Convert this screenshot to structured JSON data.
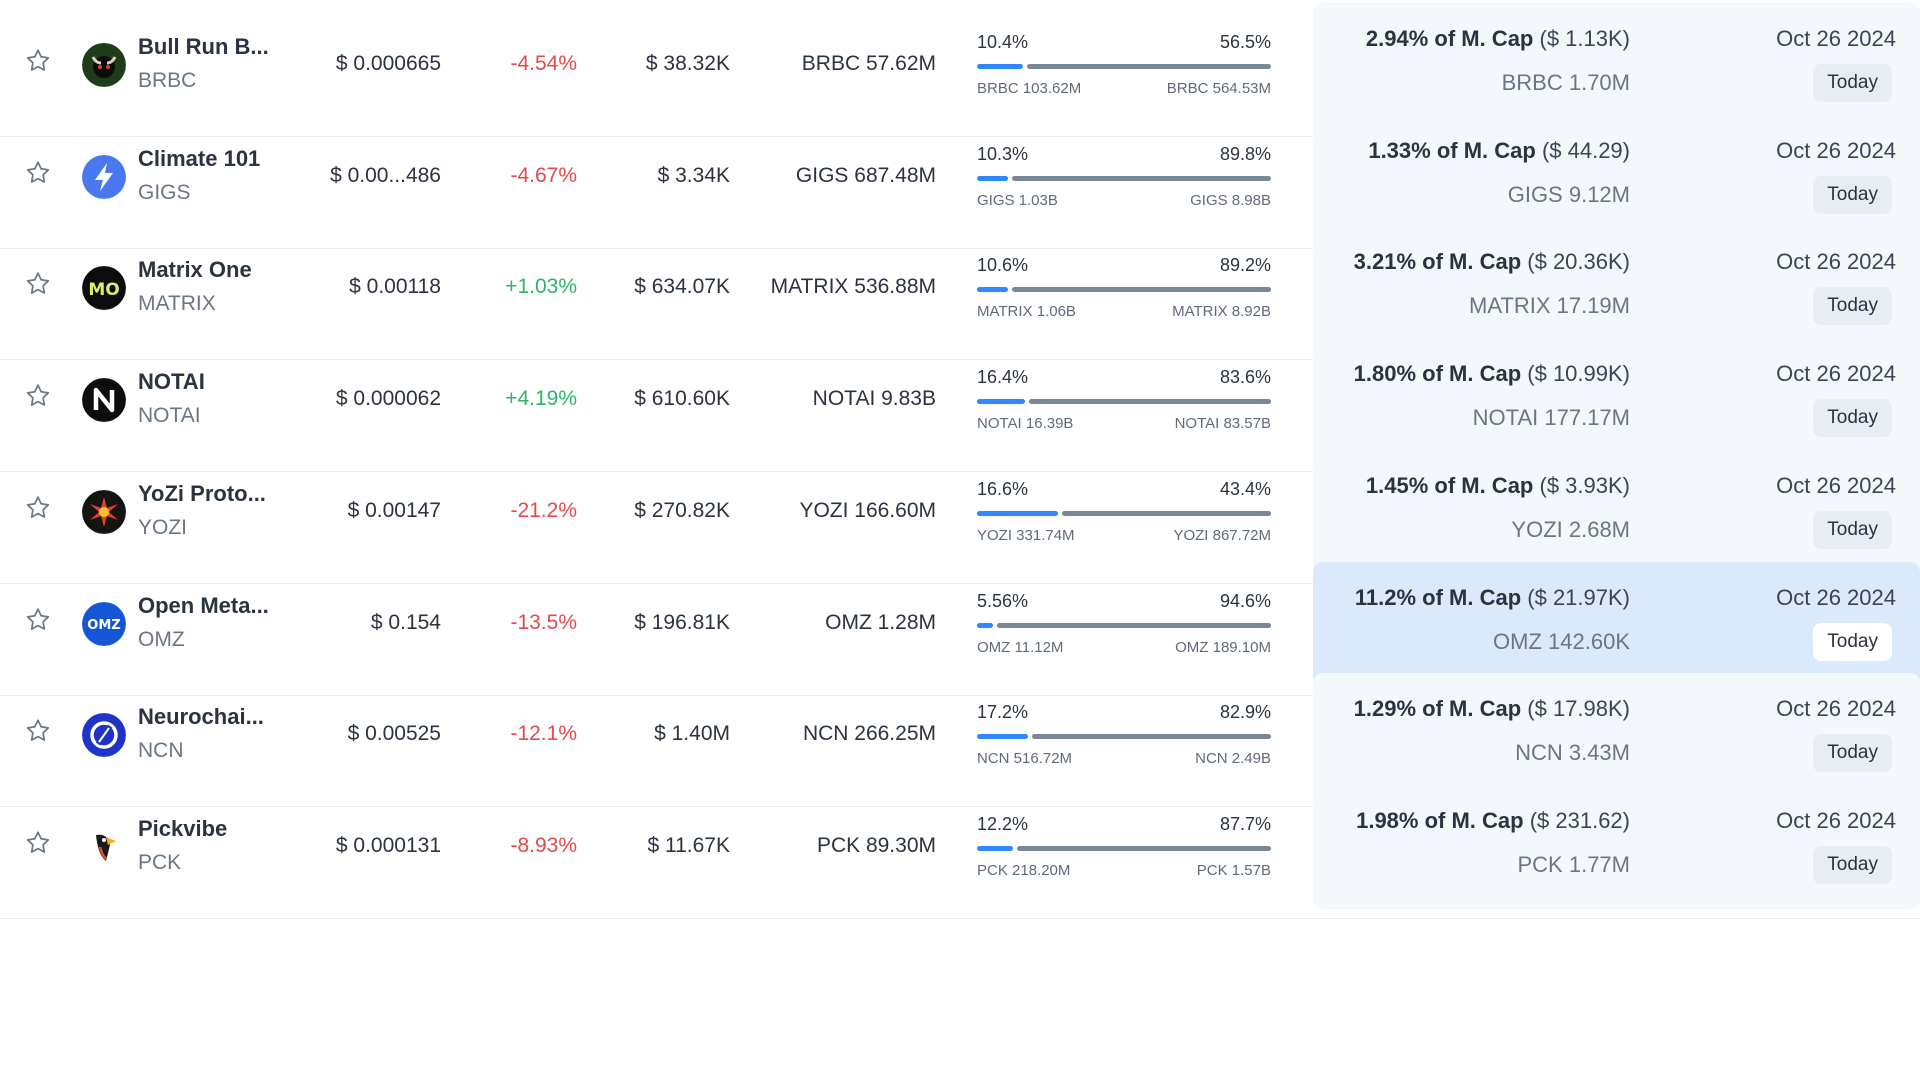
{
  "colors": {
    "negative": "#e5484d",
    "positive": "#2fb36b",
    "bar_fill": "#2f88ff",
    "bar_rest": "#7a8795",
    "panel": "#f4f8fd",
    "panel_active": "#dbe9fc"
  },
  "rows": [
    {
      "icon": "bull-run-logo-icon",
      "name": "Bull Run B...",
      "symbol": "BRBC",
      "price": "$ 0.000665",
      "change": "-4.54%",
      "change_dir": "neg",
      "volume": "$ 38.32K",
      "supply": "BRBC 57.62M",
      "pct_left": "10.4%",
      "pct_right": "56.5%",
      "fill": 0.156,
      "amt_left": "BRBC 103.62M",
      "amt_right": "BRBC 564.53M",
      "cap_pct": "2.94% of M. Cap",
      "cap_usd": "($ 1.13K)",
      "cap_amount": "BRBC 1.70M",
      "date": "Oct 26 2024",
      "badge": "Today",
      "active": false
    },
    {
      "icon": "lightning-logo-icon",
      "name": "Climate 101",
      "symbol": "GIGS",
      "price": "$ 0.00...486",
      "change": "-4.67%",
      "change_dir": "neg",
      "volume": "$ 3.34K",
      "supply": "GIGS 687.48M",
      "pct_left": "10.3%",
      "pct_right": "89.8%",
      "fill": 0.104,
      "amt_left": "GIGS 1.03B",
      "amt_right": "GIGS 8.98B",
      "cap_pct": "1.33% of M. Cap",
      "cap_usd": "($ 44.29)",
      "cap_amount": "GIGS 9.12M",
      "date": "Oct 26 2024",
      "badge": "Today",
      "active": false
    },
    {
      "icon": "matrix-logo-icon",
      "name": "Matrix One",
      "symbol": "MATRIX",
      "price": "$ 0.00118",
      "change": "+1.03%",
      "change_dir": "pos",
      "volume": "$ 634.07K",
      "supply": "MATRIX 536.88M",
      "pct_left": "10.6%",
      "pct_right": "89.2%",
      "fill": 0.106,
      "amt_left": "MATRIX 1.06B",
      "amt_right": "MATRIX 8.92B",
      "cap_pct": "3.21% of M. Cap",
      "cap_usd": "($ 20.36K)",
      "cap_amount": "MATRIX 17.19M",
      "date": "Oct 26 2024",
      "badge": "Today",
      "active": false
    },
    {
      "icon": "notai-logo-icon",
      "name": "NOTAI",
      "symbol": "NOTAI",
      "price": "$ 0.000062",
      "change": "+4.19%",
      "change_dir": "pos",
      "volume": "$ 610.60K",
      "supply": "NOTAI 9.83B",
      "pct_left": "16.4%",
      "pct_right": "83.6%",
      "fill": 0.164,
      "amt_left": "NOTAI 16.39B",
      "amt_right": "NOTAI 83.57B",
      "cap_pct": "1.80% of M. Cap",
      "cap_usd": "($ 10.99K)",
      "cap_amount": "NOTAI 177.17M",
      "date": "Oct 26 2024",
      "badge": "Today",
      "active": false
    },
    {
      "icon": "yozi-logo-icon",
      "name": "YoZi Proto...",
      "symbol": "YOZI",
      "price": "$ 0.00147",
      "change": "-21.2%",
      "change_dir": "neg",
      "volume": "$ 270.82K",
      "supply": "YOZI 166.60M",
      "pct_left": "16.6%",
      "pct_right": "43.4%",
      "fill": 0.277,
      "amt_left": "YOZI 331.74M",
      "amt_right": "YOZI 867.72M",
      "cap_pct": "1.45% of M. Cap",
      "cap_usd": "($ 3.93K)",
      "cap_amount": "YOZI 2.68M",
      "date": "Oct 26 2024",
      "badge": "Today",
      "active": false
    },
    {
      "icon": "omz-logo-icon",
      "name": "Open Meta...",
      "symbol": "OMZ",
      "price": "$ 0.154",
      "change": "-13.5%",
      "change_dir": "neg",
      "volume": "$ 196.81K",
      "supply": "OMZ 1.28M",
      "pct_left": "5.56%",
      "pct_right": "94.6%",
      "fill": 0.056,
      "amt_left": "OMZ 11.12M",
      "amt_right": "OMZ 189.10M",
      "cap_pct": "11.2% of M. Cap",
      "cap_usd": "($ 21.97K)",
      "cap_amount": "OMZ 142.60K",
      "date": "Oct 26 2024",
      "badge": "Today",
      "active": true
    },
    {
      "icon": "neurochain-logo-icon",
      "name": "Neurochai...",
      "symbol": "NCN",
      "price": "$ 0.00525",
      "change": "-12.1%",
      "change_dir": "neg",
      "volume": "$ 1.40M",
      "supply": "NCN 266.25M",
      "pct_left": "17.2%",
      "pct_right": "82.9%",
      "fill": 0.172,
      "amt_left": "NCN 516.72M",
      "amt_right": "NCN 2.49B",
      "cap_pct": "1.29% of M. Cap",
      "cap_usd": "($ 17.98K)",
      "cap_amount": "NCN 3.43M",
      "date": "Oct 26 2024",
      "badge": "Today",
      "active": false
    },
    {
      "icon": "pickvibe-logo-icon",
      "name": "Pickvibe",
      "symbol": "PCK",
      "price": "$ 0.000131",
      "change": "-8.93%",
      "change_dir": "neg",
      "volume": "$ 11.67K",
      "supply": "PCK 89.30M",
      "pct_left": "12.2%",
      "pct_right": "87.7%",
      "fill": 0.122,
      "amt_left": "PCK 218.20M",
      "amt_right": "PCK 1.57B",
      "cap_pct": "1.98% of M. Cap",
      "cap_usd": "($ 231.62)",
      "cap_amount": "PCK 1.77M",
      "date": "Oct 26 2024",
      "badge": "Today",
      "active": false
    }
  ]
}
